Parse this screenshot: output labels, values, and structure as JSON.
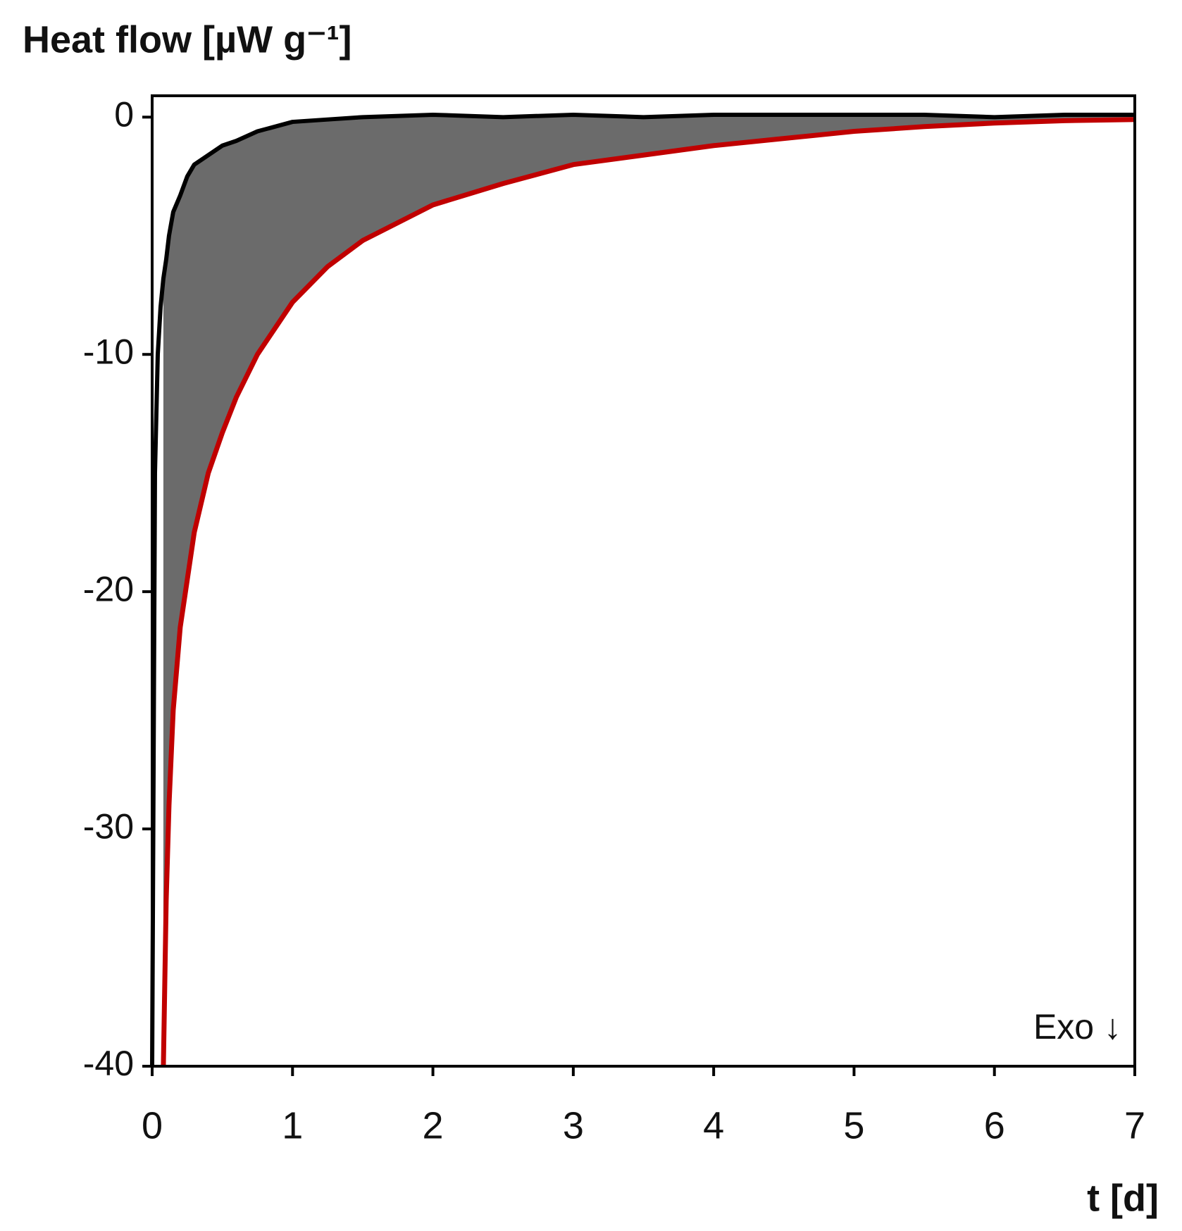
{
  "chart_data": {
    "type": "line",
    "y_label": "Heat flow [µW g⁻¹]",
    "x_label": "t [d]",
    "annotation": "Exo ↓",
    "xlim": [
      0,
      7
    ],
    "ylim": [
      -40,
      0.9
    ],
    "xticks": [
      0,
      1,
      2,
      3,
      4,
      5,
      6,
      7
    ],
    "yticks": [
      0,
      -10,
      -20,
      -30,
      -40
    ],
    "fill_between_color": "#6b6b6b",
    "x": [
      0,
      0.02,
      0.04,
      0.06,
      0.08,
      0.1,
      0.12,
      0.15,
      0.2,
      0.25,
      0.3,
      0.4,
      0.5,
      0.6,
      0.75,
      1,
      1.25,
      1.5,
      2,
      2.5,
      3,
      3.5,
      4,
      4.5,
      5,
      5.5,
      6,
      6.5,
      7
    ],
    "series": [
      {
        "color": "#000000",
        "values": [
          -40,
          -15,
          -10,
          -8,
          -6.8,
          -6,
          -5,
          -4,
          -3.3,
          -2.5,
          -2,
          -1.6,
          -1.2,
          -1,
          -0.6,
          -0.2,
          -0.1,
          0,
          0.1,
          0,
          0.1,
          0,
          0.1,
          0.1,
          0.1,
          0.1,
          0,
          0.1,
          0.1
        ]
      },
      {
        "color": "#c00000",
        "values": [
          null,
          null,
          null,
          null,
          -40,
          -33,
          -29,
          -25,
          -21.5,
          -19.5,
          -17.5,
          -15,
          -13.3,
          -11.8,
          -10,
          -7.8,
          -6.3,
          -5.2,
          -3.7,
          -2.8,
          -2,
          -1.6,
          -1.2,
          -0.9,
          -0.6,
          -0.4,
          -0.25,
          -0.15,
          -0.1
        ]
      }
    ]
  }
}
